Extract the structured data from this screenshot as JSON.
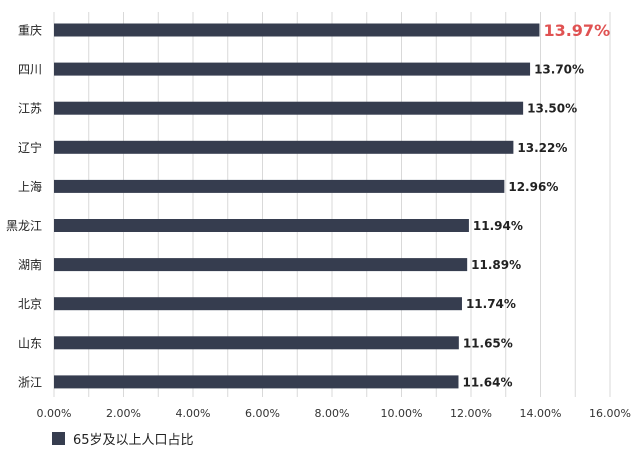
{
  "chart_data": {
    "type": "bar",
    "orientation": "horizontal",
    "categories": [
      "重庆",
      "四川",
      "江苏",
      "辽宁",
      "上海",
      "黑龙江",
      "湖南",
      "北京",
      "山东",
      "浙江"
    ],
    "series": [
      {
        "name": "65岁及以上人口占比",
        "values": [
          13.97,
          13.7,
          13.5,
          13.22,
          12.96,
          11.94,
          11.89,
          11.74,
          11.65,
          11.64
        ]
      }
    ],
    "value_labels": [
      "13.97%",
      "13.70%",
      "13.50%",
      "13.22%",
      "12.96%",
      "11.94%",
      "11.89%",
      "11.74%",
      "11.65%",
      "11.64%"
    ],
    "highlight_index": 0,
    "xticks": [
      "0.00%",
      "2.00%",
      "4.00%",
      "6.00%",
      "8.00%",
      "10.00%",
      "12.00%",
      "14.00%",
      "16.00%"
    ],
    "xlim": [
      0,
      16
    ],
    "grid": true,
    "legend_position": "bottom-left",
    "colors": {
      "bar": "#363d4f",
      "highlight_label": "#e05252",
      "grid": "#d9d9d9",
      "label": "#222222"
    }
  }
}
